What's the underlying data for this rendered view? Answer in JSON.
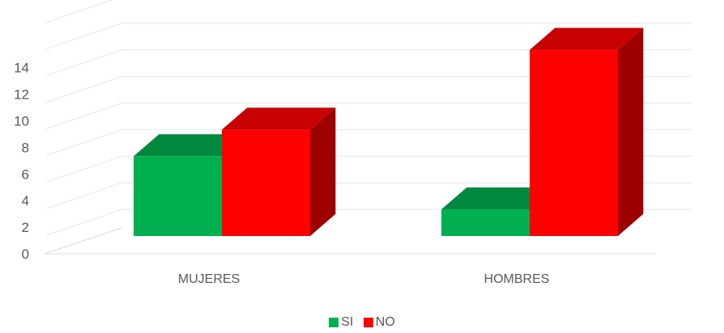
{
  "chart_data": {
    "type": "bar",
    "categories": [
      "MUJERES",
      "HOMBRES"
    ],
    "series": [
      {
        "name": "SI",
        "values": [
          6,
          2
        ],
        "color": "#00b050"
      },
      {
        "name": "NO",
        "values": [
          8,
          14
        ],
        "color": "#ff0000"
      }
    ],
    "yticks": [
      "0",
      "2",
      "4",
      "6",
      "8",
      "10",
      "12",
      "14"
    ],
    "ylim": [
      0,
      18
    ],
    "grid": true,
    "legend_position": "bottom",
    "style": "3d-column"
  }
}
